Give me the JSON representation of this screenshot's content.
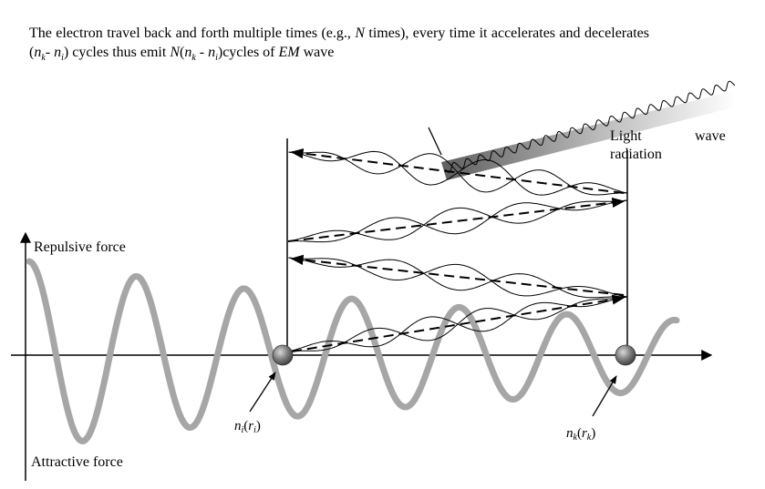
{
  "caption": {
    "part1": "The electron travel back and forth multiple times (e.g., ",
    "N": "N",
    "part2": " times), every time it accelerates and decelerates (",
    "nk": "n",
    "k": "k",
    "dash": "- ",
    "ni": "n",
    "i": "i",
    "part3": ") cycles thus emit ",
    "N2": "N",
    "paren_open": "(",
    "nk2": "n",
    "k2": "k",
    "minus": " - ",
    "ni2": "n",
    "i2": "i",
    "part4": ")cycles of ",
    "EM": "EM",
    "part5": " wave"
  },
  "labels": {
    "repulsive": "Repulsive force",
    "attractive": "Attractive force",
    "light_line1_a": "Light",
    "light_line1_b": "wave",
    "light_line2": "radiation"
  },
  "points": {
    "left": {
      "n": "n",
      "sub": "i",
      "open": "(",
      "r": "r",
      "rsub": "i",
      "close": ")"
    },
    "right": {
      "n": "n",
      "sub": "k",
      "open": "(",
      "r": "r",
      "rsub": "k",
      "close": ")"
    }
  },
  "colors": {
    "thick_wave": "#a6a6a6",
    "electron": "#6e6e6e",
    "beam_dark": "#666666",
    "beam_light": "#ffffff"
  }
}
